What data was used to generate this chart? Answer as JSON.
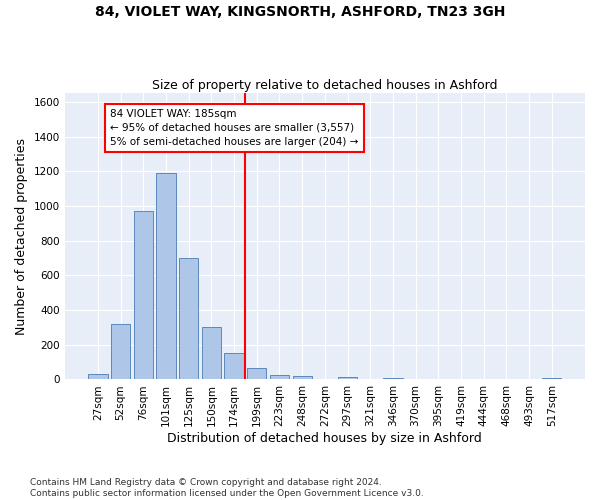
{
  "title_line1": "84, VIOLET WAY, KINGSNORTH, ASHFORD, TN23 3GH",
  "title_line2": "Size of property relative to detached houses in Ashford",
  "xlabel": "Distribution of detached houses by size in Ashford",
  "ylabel": "Number of detached properties",
  "footnote": "Contains HM Land Registry data © Crown copyright and database right 2024.\nContains public sector information licensed under the Open Government Licence v3.0.",
  "bin_labels": [
    "27sqm",
    "52sqm",
    "76sqm",
    "101sqm",
    "125sqm",
    "150sqm",
    "174sqm",
    "199sqm",
    "223sqm",
    "248sqm",
    "272sqm",
    "297sqm",
    "321sqm",
    "346sqm",
    "370sqm",
    "395sqm",
    "419sqm",
    "444sqm",
    "468sqm",
    "493sqm",
    "517sqm"
  ],
  "bar_values": [
    30,
    320,
    970,
    1190,
    700,
    300,
    155,
    65,
    25,
    20,
    0,
    15,
    0,
    10,
    0,
    0,
    0,
    0,
    0,
    0,
    10
  ],
  "bar_color": "#aec6e8",
  "bar_edge_color": "#4a7bb5",
  "vline_x": 6.5,
  "vline_color": "red",
  "annotation_text": "84 VIOLET WAY: 185sqm\n← 95% of detached houses are smaller (3,557)\n5% of semi-detached houses are larger (204) →",
  "annotation_box_color": "white",
  "annotation_box_edge_color": "red",
  "ylim": [
    0,
    1650
  ],
  "yticks": [
    0,
    200,
    400,
    600,
    800,
    1000,
    1200,
    1400,
    1600
  ],
  "plot_bg_color": "#e8eef8",
  "title_fontsize": 10,
  "subtitle_fontsize": 9,
  "axis_label_fontsize": 9,
  "tick_fontsize": 7.5,
  "footnote_fontsize": 6.5
}
